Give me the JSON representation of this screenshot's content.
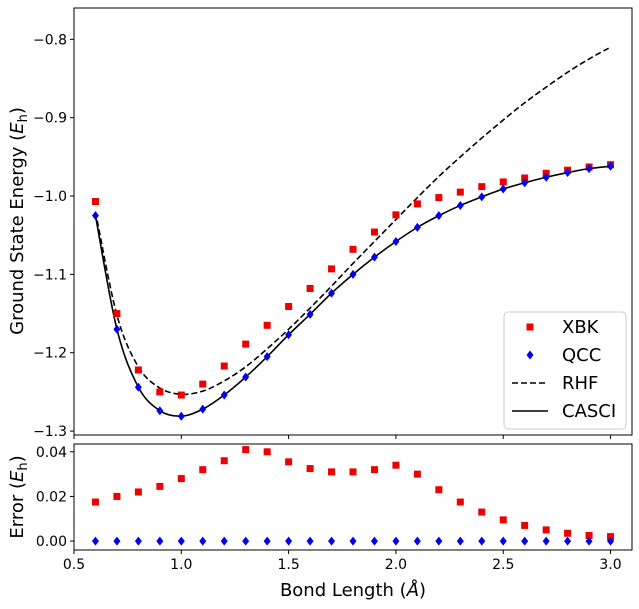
{
  "chart_data": [
    {
      "type": "line",
      "ylabel": "Ground State Energy",
      "yunit": "h",
      "xlim": [
        0.5,
        3.1
      ],
      "ylim": [
        -1.305,
        -0.76
      ],
      "xticks": [
        0.5,
        1.0,
        1.5,
        2.0,
        2.5,
        3.0
      ],
      "yticks": [
        -1.3,
        -1.2,
        -1.1,
        -1.0,
        -0.9,
        -0.8
      ],
      "ytick_labels": [
        "−1.3",
        "−1.2",
        "−1.1",
        "−1.0",
        "−0.9",
        "−0.8"
      ],
      "legend_position": "lower-right",
      "x": [
        0.6,
        0.7,
        0.8,
        0.9,
        1.0,
        1.1,
        1.2,
        1.3,
        1.4,
        1.5,
        1.6,
        1.7,
        1.8,
        1.9,
        2.0,
        2.1,
        2.2,
        2.3,
        2.4,
        2.5,
        2.6,
        2.7,
        2.8,
        2.9,
        3.0
      ],
      "series": [
        {
          "name": "XBK",
          "style": "square-markers",
          "color": "#ee0000",
          "values": [
            -1.007,
            -1.15,
            -1.222,
            -1.25,
            -1.254,
            -1.24,
            -1.217,
            -1.189,
            -1.165,
            -1.141,
            -1.118,
            -1.093,
            -1.068,
            -1.046,
            -1.024,
            -1.01,
            -1.002,
            -0.995,
            -0.988,
            -0.982,
            -0.977,
            -0.971,
            -0.967,
            -0.963,
            -0.96
          ]
        },
        {
          "name": "QCC",
          "style": "diamond-markers",
          "color": "#0000ee",
          "values": [
            -1.025,
            -1.17,
            -1.244,
            -1.274,
            -1.281,
            -1.272,
            -1.254,
            -1.231,
            -1.205,
            -1.177,
            -1.151,
            -1.124,
            -1.1,
            -1.078,
            -1.058,
            -1.04,
            -1.025,
            -1.012,
            -1.001,
            -0.991,
            -0.983,
            -0.976,
            -0.97,
            -0.965,
            -0.962
          ]
        },
        {
          "name": "RHF",
          "style": "dashed-line",
          "color": "#000000",
          "values": [
            -1.02,
            -1.152,
            -1.218,
            -1.245,
            -1.253,
            -1.249,
            -1.236,
            -1.218,
            -1.195,
            -1.17,
            -1.143,
            -1.115,
            -1.086,
            -1.058,
            -1.03,
            -1.002,
            -0.975,
            -0.95,
            -0.926,
            -0.903,
            -0.881,
            -0.861,
            -0.842,
            -0.825,
            -0.81
          ]
        },
        {
          "name": "CASCI",
          "style": "solid-line",
          "color": "#000000",
          "values": [
            -1.025,
            -1.17,
            -1.244,
            -1.274,
            -1.281,
            -1.272,
            -1.254,
            -1.231,
            -1.205,
            -1.177,
            -1.151,
            -1.124,
            -1.1,
            -1.078,
            -1.058,
            -1.04,
            -1.025,
            -1.012,
            -1.001,
            -0.991,
            -0.983,
            -0.976,
            -0.97,
            -0.965,
            -0.962
          ]
        }
      ]
    },
    {
      "type": "scatter",
      "xlabel": "Bond Length",
      "xunit": "Å",
      "ylabel": "Error",
      "yunit": "h",
      "xlim": [
        0.5,
        3.1
      ],
      "ylim": [
        -0.004,
        0.0435
      ],
      "xticks": [
        0.5,
        1.0,
        1.5,
        2.0,
        2.5,
        3.0
      ],
      "xtick_labels": [
        "0.5",
        "1.0",
        "1.5",
        "2.0",
        "2.5",
        "3.0"
      ],
      "yticks": [
        0.0,
        0.02,
        0.04
      ],
      "ytick_labels": [
        "0.00",
        "0.02",
        "0.04"
      ],
      "x": [
        0.6,
        0.7,
        0.8,
        0.9,
        1.0,
        1.1,
        1.2,
        1.3,
        1.4,
        1.5,
        1.6,
        1.7,
        1.8,
        1.9,
        2.0,
        2.1,
        2.2,
        2.3,
        2.4,
        2.5,
        2.6,
        2.7,
        2.8,
        2.9,
        3.0
      ],
      "series": [
        {
          "name": "XBK",
          "style": "square-markers",
          "color": "#ee0000",
          "values": [
            0.0175,
            0.02,
            0.022,
            0.0245,
            0.028,
            0.032,
            0.036,
            0.041,
            0.04,
            0.0355,
            0.0325,
            0.031,
            0.031,
            0.032,
            0.034,
            0.03,
            0.023,
            0.0175,
            0.013,
            0.0095,
            0.007,
            0.005,
            0.0035,
            0.0025,
            0.002
          ]
        },
        {
          "name": "QCC",
          "style": "diamond-markers",
          "color": "#0000ee",
          "values": [
            0.0,
            0.0,
            0.0,
            0.0,
            0.0,
            0.0,
            0.0,
            0.0,
            0.0,
            0.0,
            0.0,
            0.0,
            0.0,
            0.0,
            0.0,
            0.0,
            0.0,
            0.0,
            0.0,
            0.0,
            0.0,
            0.0,
            0.0,
            0.0,
            0.0
          ]
        }
      ]
    }
  ]
}
